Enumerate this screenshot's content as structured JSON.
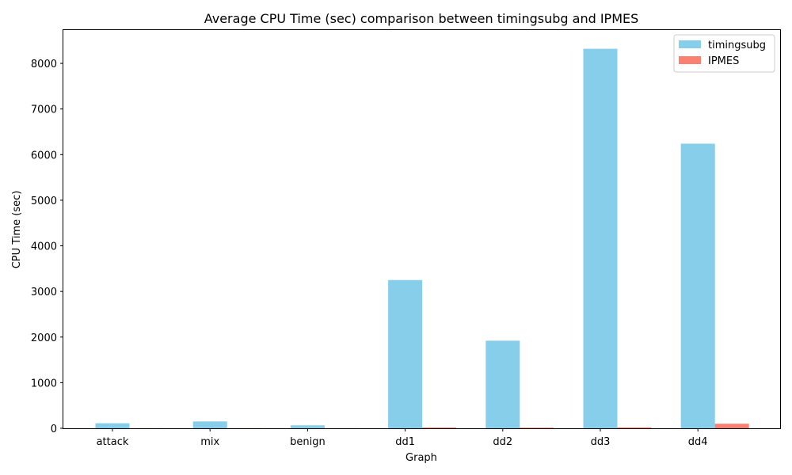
{
  "chart_data": {
    "type": "bar",
    "title": "Average CPU Time (sec) comparison between timingsubg and IPMES",
    "xlabel": "Graph",
    "ylabel": "CPU Time (sec)",
    "categories": [
      "attack",
      "mix",
      "benign",
      "dd1",
      "dd2",
      "dd3",
      "dd4"
    ],
    "series": [
      {
        "name": "timingsubg",
        "color": "#87ceeb",
        "values": [
          110,
          150,
          65,
          3250,
          1920,
          8320,
          6240
        ]
      },
      {
        "name": "IPMES",
        "color": "#fa8072",
        "values": [
          2,
          3,
          1,
          18,
          14,
          20,
          100
        ]
      }
    ],
    "ylim": [
      0,
      8730
    ],
    "yticks": [
      0,
      1000,
      2000,
      3000,
      4000,
      5000,
      6000,
      7000,
      8000
    ],
    "grid": false,
    "legend_position": "top-right"
  }
}
